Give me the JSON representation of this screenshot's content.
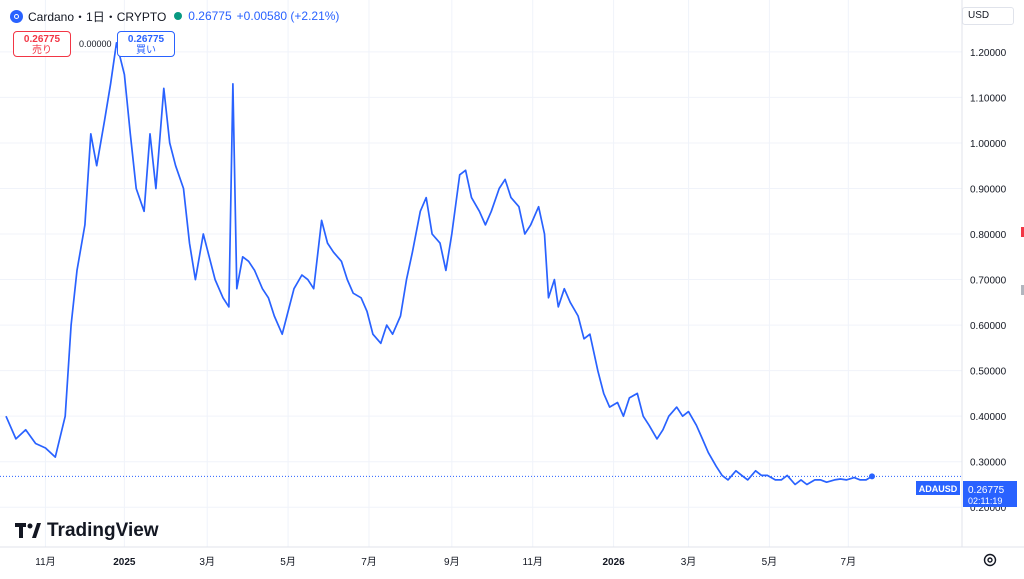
{
  "header": {
    "symbol_title": "Cardano・1日・CRYPTO",
    "price": "0.26775",
    "change": "+0.00580 (+2.21%)"
  },
  "trade": {
    "sell_price": "0.26775",
    "sell_label": "売り",
    "spread": "0.00000",
    "buy_price": "0.26775",
    "buy_label": "買い"
  },
  "currency": {
    "selected": "USD"
  },
  "branding": {
    "logo_text": "TradingView"
  },
  "price_tag": {
    "ticker": "ADAUSD",
    "price": "0.26775",
    "countdown": "02:11:19"
  },
  "colors": {
    "line": "#2962ff",
    "accent_sell": "#f23645",
    "accent_buy": "#2962ff",
    "status_dot": "#089981"
  },
  "chart_data": {
    "type": "line",
    "series": [
      {
        "values": [
          [
            0.0,
            0.4
          ],
          [
            0.5,
            0.35
          ],
          [
            1.0,
            0.37
          ],
          [
            1.5,
            0.34
          ],
          [
            2.0,
            0.33
          ],
          [
            2.5,
            0.31
          ],
          [
            3.0,
            0.4
          ],
          [
            3.3,
            0.6
          ],
          [
            3.6,
            0.72
          ],
          [
            4.0,
            0.82
          ],
          [
            4.3,
            1.02
          ],
          [
            4.6,
            0.95
          ],
          [
            5.0,
            1.05
          ],
          [
            5.3,
            1.13
          ],
          [
            5.6,
            1.22
          ],
          [
            6.0,
            1.15
          ],
          [
            6.3,
            1.02
          ],
          [
            6.6,
            0.9
          ],
          [
            7.0,
            0.85
          ],
          [
            7.3,
            1.02
          ],
          [
            7.6,
            0.9
          ],
          [
            8.0,
            1.12
          ],
          [
            8.3,
            1.0
          ],
          [
            8.6,
            0.95
          ],
          [
            9.0,
            0.9
          ],
          [
            9.3,
            0.78
          ],
          [
            9.6,
            0.7
          ],
          [
            10.0,
            0.8
          ],
          [
            10.3,
            0.75
          ],
          [
            10.6,
            0.7
          ],
          [
            11.0,
            0.66
          ],
          [
            11.3,
            0.64
          ],
          [
            11.5,
            1.13
          ],
          [
            11.7,
            0.68
          ],
          [
            12.0,
            0.75
          ],
          [
            12.3,
            0.74
          ],
          [
            12.6,
            0.72
          ],
          [
            13.0,
            0.68
          ],
          [
            13.3,
            0.66
          ],
          [
            13.6,
            0.62
          ],
          [
            14.0,
            0.58
          ],
          [
            14.3,
            0.63
          ],
          [
            14.6,
            0.68
          ],
          [
            15.0,
            0.71
          ],
          [
            15.3,
            0.7
          ],
          [
            15.6,
            0.68
          ],
          [
            16.0,
            0.83
          ],
          [
            16.3,
            0.78
          ],
          [
            16.6,
            0.76
          ],
          [
            17.0,
            0.74
          ],
          [
            17.3,
            0.7
          ],
          [
            17.6,
            0.67
          ],
          [
            18.0,
            0.66
          ],
          [
            18.3,
            0.63
          ],
          [
            18.6,
            0.58
          ],
          [
            19.0,
            0.56
          ],
          [
            19.3,
            0.6
          ],
          [
            19.6,
            0.58
          ],
          [
            20.0,
            0.62
          ],
          [
            20.3,
            0.7
          ],
          [
            20.6,
            0.76
          ],
          [
            21.0,
            0.85
          ],
          [
            21.3,
            0.88
          ],
          [
            21.6,
            0.8
          ],
          [
            22.0,
            0.78
          ],
          [
            22.3,
            0.72
          ],
          [
            22.6,
            0.8
          ],
          [
            23.0,
            0.93
          ],
          [
            23.3,
            0.94
          ],
          [
            23.6,
            0.88
          ],
          [
            24.0,
            0.85
          ],
          [
            24.3,
            0.82
          ],
          [
            24.6,
            0.85
          ],
          [
            25.0,
            0.9
          ],
          [
            25.3,
            0.92
          ],
          [
            25.6,
            0.88
          ],
          [
            26.0,
            0.86
          ],
          [
            26.3,
            0.8
          ],
          [
            26.6,
            0.82
          ],
          [
            27.0,
            0.86
          ],
          [
            27.3,
            0.8
          ],
          [
            27.5,
            0.66
          ],
          [
            27.8,
            0.7
          ],
          [
            28.0,
            0.64
          ],
          [
            28.3,
            0.68
          ],
          [
            28.6,
            0.65
          ],
          [
            29.0,
            0.62
          ],
          [
            29.3,
            0.57
          ],
          [
            29.6,
            0.58
          ],
          [
            30.0,
            0.5
          ],
          [
            30.3,
            0.45
          ],
          [
            30.6,
            0.42
          ],
          [
            31.0,
            0.43
          ],
          [
            31.3,
            0.4
          ],
          [
            31.6,
            0.44
          ],
          [
            32.0,
            0.45
          ],
          [
            32.3,
            0.4
          ],
          [
            32.6,
            0.38
          ],
          [
            33.0,
            0.35
          ],
          [
            33.3,
            0.37
          ],
          [
            33.6,
            0.4
          ],
          [
            34.0,
            0.42
          ],
          [
            34.3,
            0.4
          ],
          [
            34.6,
            0.41
          ],
          [
            35.0,
            0.38
          ],
          [
            35.3,
            0.35
          ],
          [
            35.6,
            0.32
          ],
          [
            36.0,
            0.29
          ],
          [
            36.3,
            0.27
          ],
          [
            36.6,
            0.26
          ],
          [
            37.0,
            0.28
          ],
          [
            37.3,
            0.27
          ],
          [
            37.6,
            0.26
          ],
          [
            38.0,
            0.28
          ],
          [
            38.3,
            0.27
          ],
          [
            38.6,
            0.27
          ],
          [
            39.0,
            0.26
          ],
          [
            39.3,
            0.26
          ],
          [
            39.6,
            0.27
          ],
          [
            40.0,
            0.25
          ],
          [
            40.3,
            0.26
          ],
          [
            40.6,
            0.25
          ],
          [
            41.0,
            0.26
          ],
          [
            41.3,
            0.26
          ],
          [
            41.6,
            0.255
          ],
          [
            42.0,
            0.26
          ],
          [
            42.3,
            0.262
          ],
          [
            42.6,
            0.26
          ],
          [
            43.0,
            0.265
          ],
          [
            43.3,
            0.26
          ],
          [
            43.6,
            0.26
          ],
          [
            43.9,
            0.2678
          ]
        ]
      }
    ],
    "xticks": [
      {
        "x": 2.0,
        "label": "11月"
      },
      {
        "x": 6.0,
        "label": "2025"
      },
      {
        "x": 10.2,
        "label": "3月"
      },
      {
        "x": 14.3,
        "label": "5月"
      },
      {
        "x": 18.4,
        "label": "7月"
      },
      {
        "x": 22.6,
        "label": "9月"
      },
      {
        "x": 26.7,
        "label": "11月"
      },
      {
        "x": 30.8,
        "label": "2026"
      },
      {
        "x": 34.6,
        "label": "3月"
      },
      {
        "x": 38.7,
        "label": "5月"
      },
      {
        "x": 42.7,
        "label": "7月"
      }
    ],
    "yticks": [
      "1.20000",
      "1.10000",
      "1.00000",
      "0.90000",
      "0.80000",
      "0.70000",
      "0.60000",
      "0.50000",
      "0.40000",
      "0.30000",
      "0.20000"
    ],
    "ylim": [
      0.15,
      1.27
    ],
    "xlim": [
      0,
      43.9
    ],
    "last_value": 0.26775,
    "grid": true
  }
}
